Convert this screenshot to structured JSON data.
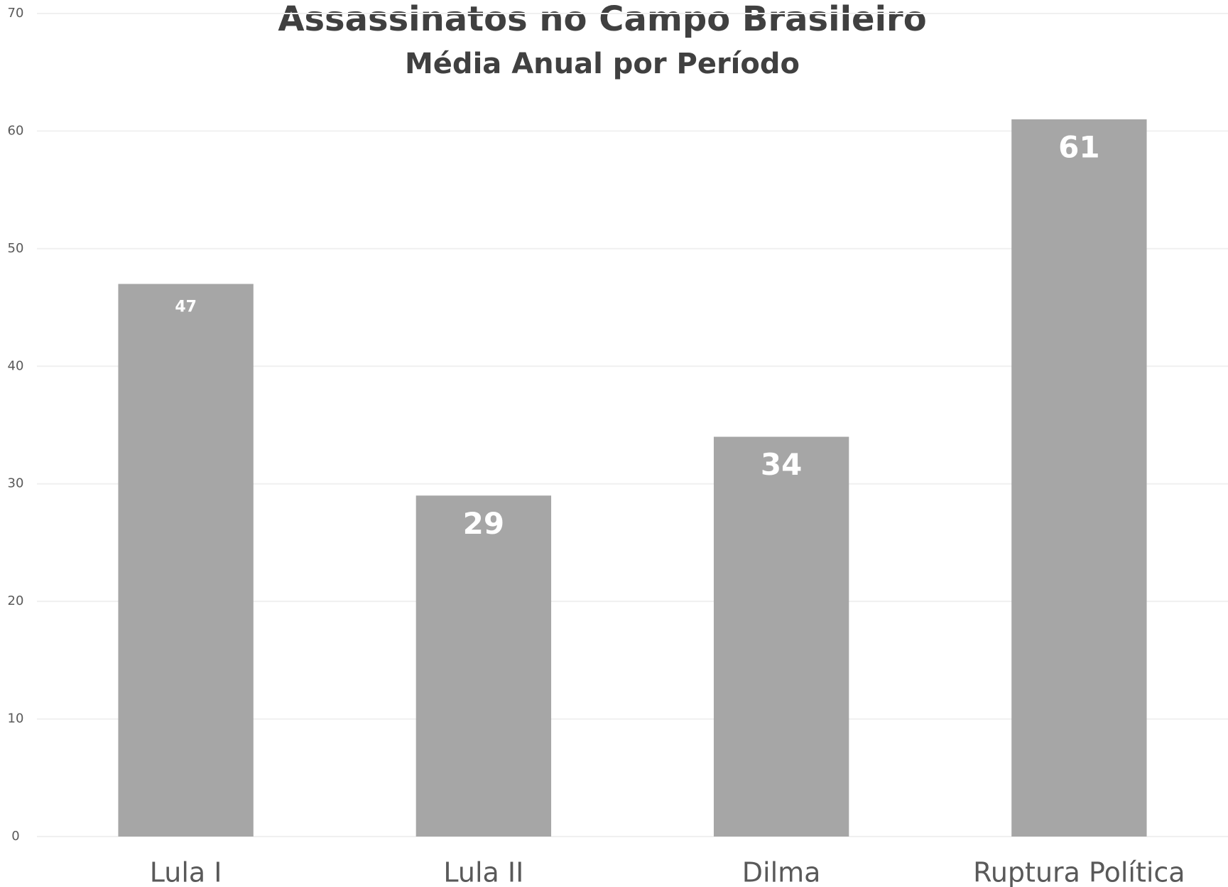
{
  "chart_data": {
    "type": "bar",
    "title": "Assassinatos no Campo Brasileiro",
    "subtitle": "Média Anual por Período",
    "categories": [
      "Lula I",
      "Lula II",
      "Dilma",
      "Ruptura Política"
    ],
    "values": [
      47,
      29,
      34,
      61
    ],
    "color": "#a6a6a6",
    "ylim": [
      0,
      70
    ],
    "yticks": [
      0,
      10,
      20,
      30,
      40,
      50,
      60,
      70
    ],
    "grid": true
  }
}
